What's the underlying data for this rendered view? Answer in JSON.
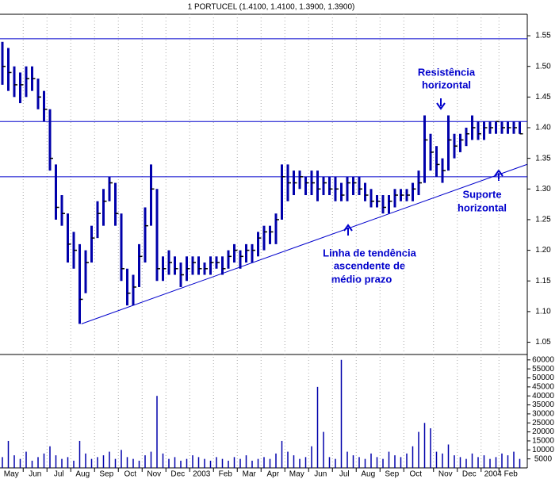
{
  "chart_data": {
    "type": "ohlc",
    "title": "1 PORTUCEL (1.4100, 1.4100, 1.3900, 1.3900)",
    "color": "#0000aa",
    "grid": true,
    "high": [
      1.54,
      1.53,
      1.5,
      1.49,
      1.5,
      1.5,
      1.48,
      1.46,
      1.43,
      1.34,
      1.29,
      1.26,
      1.23,
      1.21,
      1.2,
      1.24,
      1.28,
      1.3,
      1.32,
      1.31,
      1.26,
      1.17,
      1.16,
      1.21,
      1.27,
      1.34,
      1.3,
      1.19,
      1.2,
      1.19,
      1.18,
      1.19,
      1.19,
      1.19,
      1.18,
      1.19,
      1.19,
      1.19,
      1.2,
      1.21,
      1.2,
      1.21,
      1.21,
      1.23,
      1.24,
      1.24,
      1.26,
      1.34,
      1.34,
      1.33,
      1.33,
      1.32,
      1.33,
      1.33,
      1.32,
      1.32,
      1.32,
      1.31,
      1.32,
      1.32,
      1.32,
      1.31,
      1.3,
      1.29,
      1.29,
      1.29,
      1.3,
      1.3,
      1.3,
      1.31,
      1.33,
      1.42,
      1.39,
      1.37,
      1.35,
      1.42,
      1.39,
      1.39,
      1.4,
      1.42,
      1.41,
      1.41,
      1.41,
      1.41,
      1.41,
      1.41,
      1.41,
      1.41
    ],
    "low": [
      1.47,
      1.46,
      1.45,
      1.44,
      1.45,
      1.46,
      1.43,
      1.41,
      1.33,
      1.25,
      1.24,
      1.18,
      1.17,
      1.08,
      1.13,
      1.18,
      1.22,
      1.24,
      1.28,
      1.24,
      1.15,
      1.11,
      1.11,
      1.14,
      1.18,
      1.24,
      1.15,
      1.15,
      1.16,
      1.16,
      1.14,
      1.15,
      1.16,
      1.16,
      1.16,
      1.16,
      1.17,
      1.16,
      1.17,
      1.18,
      1.17,
      1.18,
      1.18,
      1.19,
      1.2,
      1.21,
      1.21,
      1.25,
      1.28,
      1.29,
      1.3,
      1.29,
      1.29,
      1.28,
      1.29,
      1.29,
      1.28,
      1.28,
      1.28,
      1.29,
      1.29,
      1.28,
      1.27,
      1.27,
      1.26,
      1.26,
      1.27,
      1.28,
      1.28,
      1.28,
      1.29,
      1.31,
      1.33,
      1.32,
      1.31,
      1.33,
      1.35,
      1.36,
      1.37,
      1.38,
      1.38,
      1.38,
      1.39,
      1.39,
      1.39,
      1.39,
      1.39,
      1.39
    ],
    "close": [
      1.5,
      1.49,
      1.47,
      1.47,
      1.48,
      1.48,
      1.45,
      1.43,
      1.35,
      1.27,
      1.26,
      1.21,
      1.2,
      1.12,
      1.18,
      1.22,
      1.26,
      1.28,
      1.31,
      1.26,
      1.17,
      1.13,
      1.14,
      1.19,
      1.24,
      1.3,
      1.17,
      1.17,
      1.18,
      1.17,
      1.16,
      1.17,
      1.18,
      1.17,
      1.17,
      1.18,
      1.18,
      1.17,
      1.19,
      1.2,
      1.19,
      1.2,
      1.2,
      1.22,
      1.23,
      1.23,
      1.25,
      1.32,
      1.31,
      1.31,
      1.32,
      1.31,
      1.31,
      1.3,
      1.31,
      1.3,
      1.3,
      1.29,
      1.31,
      1.31,
      1.3,
      1.29,
      1.28,
      1.28,
      1.27,
      1.28,
      1.29,
      1.29,
      1.29,
      1.3,
      1.31,
      1.38,
      1.36,
      1.34,
      1.33,
      1.38,
      1.37,
      1.38,
      1.39,
      1.4,
      1.39,
      1.4,
      1.4,
      1.41,
      1.4,
      1.4,
      1.4,
      1.39
    ],
    "volume": [
      6000,
      15000,
      7000,
      5000,
      9000,
      4000,
      6000,
      8000,
      12000,
      7000,
      5000,
      6000,
      4000,
      15000,
      8000,
      5000,
      6000,
      7000,
      9000,
      5000,
      10000,
      6000,
      5000,
      4000,
      7000,
      9000,
      40000,
      8000,
      5000,
      6000,
      4000,
      5000,
      7000,
      6000,
      5000,
      4000,
      6000,
      5000,
      4000,
      6000,
      5000,
      7000,
      4000,
      5000,
      6000,
      5000,
      8000,
      15000,
      9000,
      7000,
      5000,
      6000,
      12000,
      45000,
      20000,
      6000,
      5000,
      60000,
      9000,
      7000,
      6000,
      5000,
      8000,
      6000,
      5000,
      9000,
      7000,
      6000,
      8000,
      12000,
      20000,
      25000,
      22000,
      9000,
      8000,
      13000,
      7000,
      6000,
      5000,
      8000,
      6000,
      7000,
      5000,
      6000,
      8000,
      7000,
      9000,
      5000
    ],
    "ylim": [
      1.03,
      1.585
    ],
    "yticks": [
      1.05,
      {
        "value": 1.1,
        "label": "1.10"
      },
      1.15,
      {
        "value": 1.2,
        "label": "1.20"
      },
      1.25,
      {
        "value": 1.3,
        "label": "1.30"
      },
      1.35,
      {
        "value": 1.4,
        "label": "1.40"
      },
      1.45,
      {
        "value": 1.5,
        "label": "1.50"
      },
      1.55
    ],
    "y2lim": [
      0,
      63000
    ],
    "y2ticks": [
      5000,
      10000,
      15000,
      20000,
      25000,
      30000,
      35000,
      40000,
      45000,
      50000,
      55000,
      60000
    ],
    "xticks": [
      {
        "value": 0,
        "label": "May"
      },
      {
        "value": 4,
        "label": "Jun"
      },
      {
        "value": 8,
        "label": "Jul"
      },
      {
        "value": 12,
        "label": "Aug"
      },
      {
        "value": 16,
        "label": "Sep"
      },
      {
        "value": 20,
        "label": "Oct"
      },
      {
        "value": 24,
        "label": "Nov"
      },
      {
        "value": 28,
        "label": "Dec"
      },
      {
        "value": 32,
        "label": "2003"
      },
      {
        "value": 36,
        "label": "Feb"
      },
      {
        "value": 40,
        "label": "Mar"
      },
      {
        "value": 44,
        "label": "Apr"
      },
      {
        "value": 48,
        "label": "May"
      },
      {
        "value": 52,
        "label": "Jun"
      },
      {
        "value": 56,
        "label": "Jul"
      },
      {
        "value": 60,
        "label": "Aug"
      },
      {
        "value": 64,
        "label": "Sep"
      },
      {
        "value": 68,
        "label": "Oct"
      },
      {
        "value": 73,
        "label": "Nov"
      },
      {
        "value": 77,
        "label": "Dec"
      },
      {
        "value": 81,
        "label": "2004"
      },
      {
        "value": 84,
        "label": "Feb"
      }
    ],
    "hlines": [
      1.545,
      1.41,
      1.32
    ],
    "trendline": {
      "start": [
        13.3,
        1.08
      ],
      "end": [
        88.2,
        1.34
      ]
    },
    "annotations": {
      "resistance": [
        "Resistência",
        "horizontal"
      ],
      "support": [
        "Suporte",
        "horizontal"
      ],
      "trend": [
        "Linha de tendência",
        "ascendente de",
        "médio prazo"
      ]
    }
  }
}
